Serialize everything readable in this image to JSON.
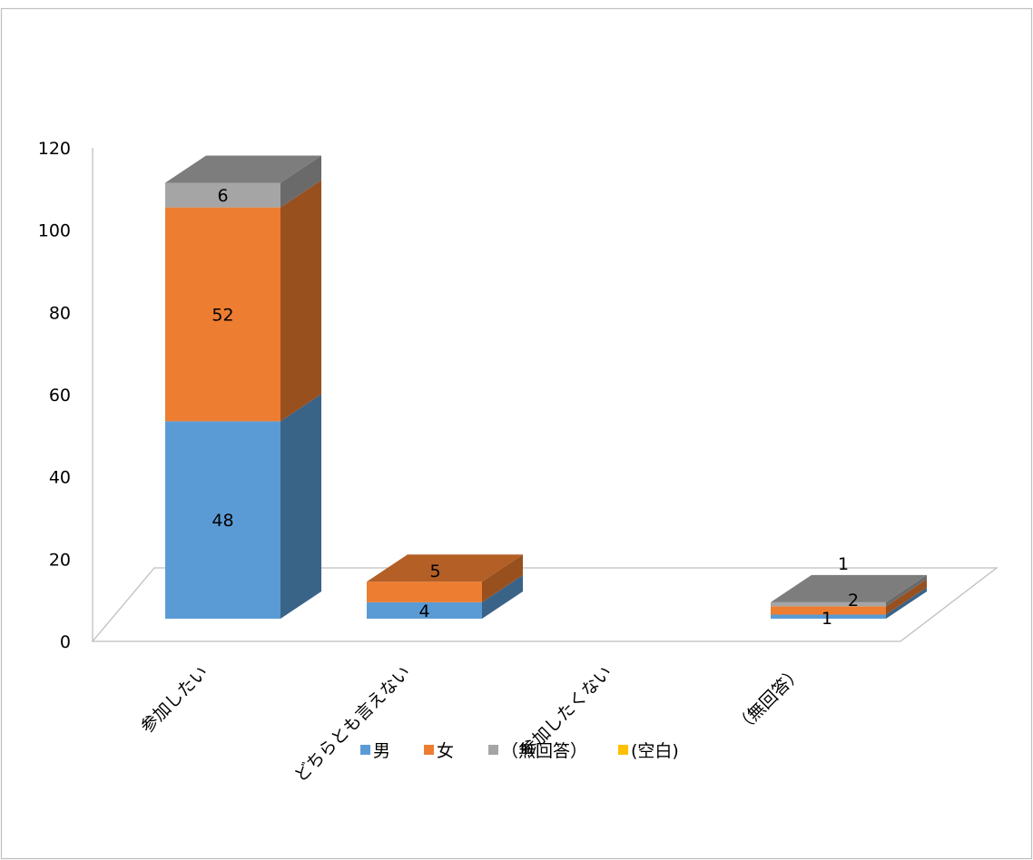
{
  "chart_data": {
    "type": "bar",
    "stacked": true,
    "three_d": true,
    "categories": [
      "参加したい",
      "どちらとも言えない",
      "参加したくない",
      "（無回答）"
    ],
    "series": [
      {
        "name": "男",
        "values": [
          48,
          4,
          0,
          1
        ],
        "labels": [
          "48",
          "4",
          "",
          "1"
        ]
      },
      {
        "name": "女",
        "values": [
          52,
          5,
          0,
          2
        ],
        "labels": [
          "52",
          "5",
          "",
          "2"
        ]
      },
      {
        "name": "（無回答）",
        "values": [
          6,
          0,
          0,
          1
        ],
        "labels": [
          "6",
          "",
          "",
          "1"
        ]
      },
      {
        "name": "(空白)",
        "values": [
          0,
          0,
          0,
          0
        ],
        "labels": [
          "",
          "",
          "",
          ""
        ]
      }
    ],
    "yticks": [
      "0",
      "20",
      "40",
      "60",
      "80",
      "100",
      "120"
    ],
    "ylim": [
      0,
      120
    ],
    "legend_position": "bottom",
    "grid": false,
    "colors": {
      "男": "#5B9BD5",
      "女": "#ED7D31",
      "（無回答）": "#A5A5A5",
      "(空白)": "#FFC000"
    }
  }
}
